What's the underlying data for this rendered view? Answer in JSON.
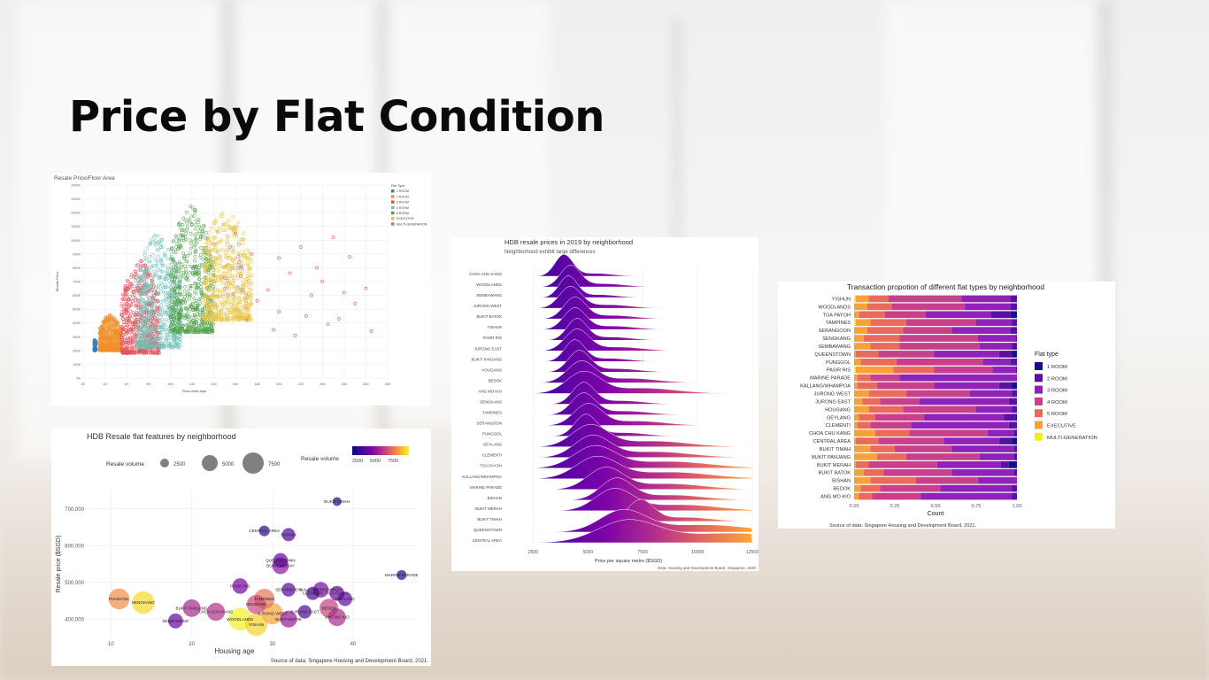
{
  "slide": {
    "title": "Price by Flat Condition"
  },
  "flat_types": [
    "1 ROOM",
    "2 ROOM",
    "3 ROOM",
    "4 ROOM",
    "5 ROOM",
    "EXECUTIVE",
    "MULTI-GENERATION"
  ],
  "chart_data": [
    {
      "id": "scatter",
      "type": "scatter",
      "title": "Resale Price/Floor Area",
      "xlabel": "Floor Area sqm",
      "ylabel": "Resale Price",
      "xlim": [
        20,
        300
      ],
      "ylim": [
        0,
        1400000
      ],
      "x_ticks": [
        "20",
        "40",
        "60",
        "80",
        "100",
        "120",
        "140",
        "160",
        "180",
        "200",
        "220",
        "240",
        "260",
        "280",
        "300"
      ],
      "y_ticks": [
        "0K",
        "100K",
        "200K",
        "300K",
        "400K",
        "500K",
        "600K",
        "700K",
        "800K",
        "900K",
        "1000K",
        "1100K",
        "1200K",
        "1300K",
        "1400K"
      ],
      "legend_title": "Flat Type",
      "legend": [
        "1 ROOM",
        "2 ROOM",
        "3 ROOM",
        "4 ROOM",
        "5 ROOM",
        "EXECUTIVE",
        "MULTI-GENERATION"
      ],
      "legend_position": "right",
      "series": [
        {
          "name": "1 ROOM",
          "color": "#3d7ab8",
          "area": [
            30,
            32
          ],
          "price": [
            200000,
            290000
          ]
        },
        {
          "name": "2 ROOM",
          "color": "#f0922d",
          "area": [
            35,
            55
          ],
          "price": [
            200000,
            460000
          ]
        },
        {
          "name": "3 ROOM",
          "color": "#e0525a",
          "area": [
            55,
            90
          ],
          "price": [
            180000,
            850000
          ]
        },
        {
          "name": "4 ROOM",
          "color": "#6fc0b9",
          "area": [
            70,
            110
          ],
          "price": [
            220000,
            1050000
          ]
        },
        {
          "name": "5 ROOM",
          "color": "#4d9d47",
          "area": [
            100,
            140
          ],
          "price": [
            330000,
            1250000
          ]
        },
        {
          "name": "EXECUTIVE",
          "color": "#e8c23f",
          "area": [
            130,
            175
          ],
          "price": [
            420000,
            1220000
          ]
        },
        {
          "name": "MULTI-GENERATION",
          "color": "#a57bb0",
          "area": [
            150,
            170
          ],
          "price": [
            580000,
            1000000
          ]
        }
      ],
      "outliers_3room": [
        [
          160,
          1050000
        ],
        [
          175,
          900000
        ],
        [
          200,
          870000
        ],
        [
          220,
          950000
        ],
        [
          250,
          1020000
        ],
        [
          265,
          880000
        ],
        [
          280,
          650000
        ],
        [
          240,
          700000
        ],
        [
          210,
          760000
        ],
        [
          190,
          640000
        ],
        [
          230,
          600000
        ],
        [
          270,
          540000
        ],
        [
          255,
          430000
        ],
        [
          285,
          340000
        ],
        [
          200,
          480000
        ],
        [
          180,
          560000
        ],
        [
          215,
          310000
        ],
        [
          245,
          390000
        ],
        [
          225,
          450000
        ],
        [
          195,
          350000
        ],
        [
          170,
          420000
        ],
        [
          260,
          620000
        ],
        [
          235,
          800000
        ]
      ]
    },
    {
      "id": "bubble",
      "type": "scatter",
      "title": "HDB Resale flat features by neighborhood",
      "xlabel": "Housing age",
      "ylabel": "Resale price ($SGD)",
      "xlim": [
        7,
        48
      ],
      "ylim": [
        350000,
        750000
      ],
      "x_ticks": [
        10,
        20,
        30,
        40
      ],
      "y_ticks": [
        400000,
        500000,
        600000,
        700000
      ],
      "y_tick_labels": [
        "400,000",
        "500,000",
        "600,000",
        "700,000"
      ],
      "size_legend_title": "Resale volume",
      "size_legend": [
        "2500",
        "5000",
        "7500"
      ],
      "color_legend_title": "Resale volume",
      "color_legend_labels": [
        "2500",
        "5000",
        "7500"
      ],
      "caption": "Source of data: Singapore Housing and Development Board, 2021.",
      "points": [
        {
          "label": "PUNGGOL",
          "age": 11,
          "price": 455000,
          "volume": 5800
        },
        {
          "label": "SENGKANG",
          "age": 14,
          "price": 445000,
          "volume": 7000
        },
        {
          "label": "BUKIT PANJANG",
          "age": 20,
          "price": 430000,
          "volume": 3600
        },
        {
          "label": "SEMBAWANG",
          "age": 18,
          "price": 395000,
          "volume": 2200
        },
        {
          "label": "CHOA CHU KANG",
          "age": 23,
          "price": 420000,
          "volume": 3900
        },
        {
          "label": "WOODLANDS",
          "age": 26,
          "price": 400000,
          "volume": 7400
        },
        {
          "label": "YISHUN",
          "age": 28,
          "price": 385000,
          "volume": 6900
        },
        {
          "label": "JURONG WEST",
          "age": 30,
          "price": 415000,
          "volume": 6200
        },
        {
          "label": "HOUGANG",
          "age": 28,
          "price": 440000,
          "volume": 4500
        },
        {
          "label": "TAMPINES",
          "age": 29,
          "price": 455000,
          "volume": 5400
        },
        {
          "label": "PASIR RIS",
          "age": 26,
          "price": 490000,
          "volume": 2500
        },
        {
          "label": "SERANGOON",
          "age": 32,
          "price": 480000,
          "volume": 1700
        },
        {
          "label": "BUKIT BATOK",
          "age": 32,
          "price": 400000,
          "volume": 3200
        },
        {
          "label": "JURONG EAST",
          "age": 34,
          "price": 420000,
          "volume": 1600
        },
        {
          "label": "CLEMENTI",
          "age": 35,
          "price": 470000,
          "volume": 1500
        },
        {
          "label": "BEDOK",
          "age": 37,
          "price": 430000,
          "volume": 4300
        },
        {
          "label": "ANG MO KIO",
          "age": 38,
          "price": 405000,
          "volume": 3700
        },
        {
          "label": "GEYLANG",
          "age": 39,
          "price": 455000,
          "volume": 1900
        },
        {
          "label": "TOA PAYOH",
          "age": 38,
          "price": 470000,
          "volume": 2200
        },
        {
          "label": "KALLANG/WHAMPOA",
          "age": 36,
          "price": 480000,
          "volume": 2500
        },
        {
          "label": "QUEENSTOWN",
          "age": 31,
          "price": 560000,
          "volume": 2000
        },
        {
          "label": "BUKIT MERAH",
          "age": 31,
          "price": 545000,
          "volume": 3000
        },
        {
          "label": "BISHAN",
          "age": 32,
          "price": 630000,
          "volume": 1500
        },
        {
          "label": "CENTRAL AREA",
          "age": 29,
          "price": 640000,
          "volume": 700
        },
        {
          "label": "BUKIT TIMAH",
          "age": 38,
          "price": 720000,
          "volume": 300
        },
        {
          "label": "MARINE PARADE",
          "age": 46,
          "price": 520000,
          "volume": 500
        }
      ]
    },
    {
      "id": "ridgeline",
      "type": "area",
      "title": "HDB resale prices in 2019 by neighborhood",
      "subtitle": "Neighborhood exhibit large differences",
      "xlabel": "Price per square metre ($SGD)",
      "xlim": [
        2000,
        12500
      ],
      "x_ticks": [
        "2500",
        "5000",
        "7500",
        "10000",
        "12500"
      ],
      "caption": "Data: Housing and Development Board, Singapore, 2020",
      "categories": [
        "CHOA CHU KANG",
        "WOODLANDS",
        "SEMBAWANG",
        "JURONG WEST",
        "BUKIT BATOK",
        "YISHUN",
        "PASIR RIS",
        "JURONG EAST",
        "BUKIT PANJANG",
        "HOUGANG",
        "BEDOK",
        "ANG MO KIO",
        "SENGKANG",
        "TAMPINES",
        "SERANGOON",
        "PUNGGOL",
        "GEYLANG",
        "CLEMENTI",
        "TOA PAYOH",
        "KALLANG/WHAMPOA",
        "MARINE PARADE",
        "BISHAN",
        "BUKIT MERAH",
        "BUKIT TIMAH",
        "QUEENSTOWN",
        "CENTRAL AREA"
      ],
      "peaks": [
        3900,
        4200,
        4100,
        4200,
        4400,
        4400,
        4500,
        4500,
        4400,
        4600,
        4700,
        4800,
        4800,
        4800,
        5000,
        4900,
        5100,
        5200,
        5300,
        5400,
        5800,
        6300,
        6200,
        7400,
        6600,
        6800
      ],
      "spreads": [
        900,
        1000,
        900,
        1100,
        1100,
        1100,
        1000,
        1200,
        1000,
        1100,
        1400,
        1700,
        1100,
        1200,
        1400,
        1100,
        1800,
        1800,
        2100,
        2100,
        1800,
        1600,
        1900,
        1300,
        2300,
        3000
      ]
    },
    {
      "id": "stacked",
      "type": "bar",
      "title": "Transaction propotion of different flat types by neighborhood",
      "xlabel": "Count",
      "x_ticks": [
        "0.00",
        "0.25",
        "0.50",
        "0.75",
        "1.00"
      ],
      "legend_title": "Flat type",
      "legend": [
        "1 ROOM",
        "2 ROOM",
        "3 ROOM",
        "4 ROOM",
        "5 ROOM",
        "EXECUTIVE",
        "MULTI-GENERATION"
      ],
      "legend_position": "right",
      "caption": "Source of data: Singapore Housing and Development Board, 2021.",
      "categories": [
        "YISHUN",
        "WOODLANDS",
        "TOA PAYOH",
        "TAMPINES",
        "SERANGOON",
        "SENGKANG",
        "SEMBAWANG",
        "QUEENSTOWN",
        "PUNGGOL",
        "PASIR RIS",
        "MARINE PARADE",
        "KALLANG/WHAMPOA",
        "JURONG WEST",
        "JURONG EAST",
        "HOUGANG",
        "GEYLANG",
        "CLEMENTI",
        "CHOA CHU KANG",
        "CENTRAL AREA",
        "BUKIT TIMAH",
        "BUKIT PANJANG",
        "BUKIT MERAH",
        "BUKIT BATOK",
        "BISHAN",
        "BEDOK",
        "ANG MO KIO"
      ],
      "series": [
        {
          "name": "MULTI-GENERATION",
          "values": [
            0.01,
            0,
            0,
            0.01,
            0,
            0,
            0,
            0,
            0,
            0.01,
            0,
            0,
            0,
            0,
            0,
            0,
            0,
            0,
            0,
            0,
            0,
            0,
            0,
            0,
            0,
            0
          ]
        },
        {
          "name": "EXECUTIVE",
          "values": [
            0.08,
            0.08,
            0.03,
            0.09,
            0.08,
            0.06,
            0.1,
            0.01,
            0.04,
            0.23,
            0.02,
            0.02,
            0.09,
            0.05,
            0.09,
            0.03,
            0.02,
            0.13,
            0.01,
            0.1,
            0.14,
            0.01,
            0.06,
            0.1,
            0.04,
            0.03
          ]
        },
        {
          "name": "5 ROOM",
          "values": [
            0.12,
            0.15,
            0.16,
            0.22,
            0.22,
            0.22,
            0.18,
            0.14,
            0.22,
            0.25,
            0.08,
            0.12,
            0.23,
            0.11,
            0.21,
            0.1,
            0.08,
            0.21,
            0.14,
            0.15,
            0.18,
            0.08,
            0.12,
            0.28,
            0.12,
            0.08
          ]
        },
        {
          "name": "4 ROOM",
          "values": [
            0.45,
            0.45,
            0.25,
            0.43,
            0.3,
            0.48,
            0.49,
            0.34,
            0.53,
            0.36,
            0.18,
            0.35,
            0.39,
            0.24,
            0.45,
            0.3,
            0.25,
            0.48,
            0.4,
            0.35,
            0.45,
            0.42,
            0.42,
            0.38,
            0.37,
            0.3
          ]
        },
        {
          "name": "3 ROOM",
          "values": [
            0.3,
            0.28,
            0.4,
            0.22,
            0.36,
            0.23,
            0.2,
            0.4,
            0.17,
            0.14,
            0.72,
            0.4,
            0.26,
            0.55,
            0.22,
            0.49,
            0.6,
            0.16,
            0.34,
            0.38,
            0.21,
            0.39,
            0.38,
            0.24,
            0.44,
            0.56
          ]
        },
        {
          "name": "2 ROOM",
          "values": [
            0.04,
            0.04,
            0.12,
            0.03,
            0.04,
            0.01,
            0.03,
            0.08,
            0.04,
            0.01,
            0,
            0.08,
            0.03,
            0.05,
            0.03,
            0.07,
            0.05,
            0.02,
            0.08,
            0.02,
            0.02,
            0.05,
            0.02,
            0,
            0.03,
            0.03
          ]
        },
        {
          "name": "1 ROOM",
          "values": [
            0,
            0,
            0.04,
            0,
            0,
            0,
            0,
            0.03,
            0,
            0,
            0,
            0.03,
            0,
            0,
            0,
            0.01,
            0,
            0,
            0.03,
            0,
            0,
            0.05,
            0,
            0,
            0,
            0
          ]
        }
      ]
    }
  ]
}
